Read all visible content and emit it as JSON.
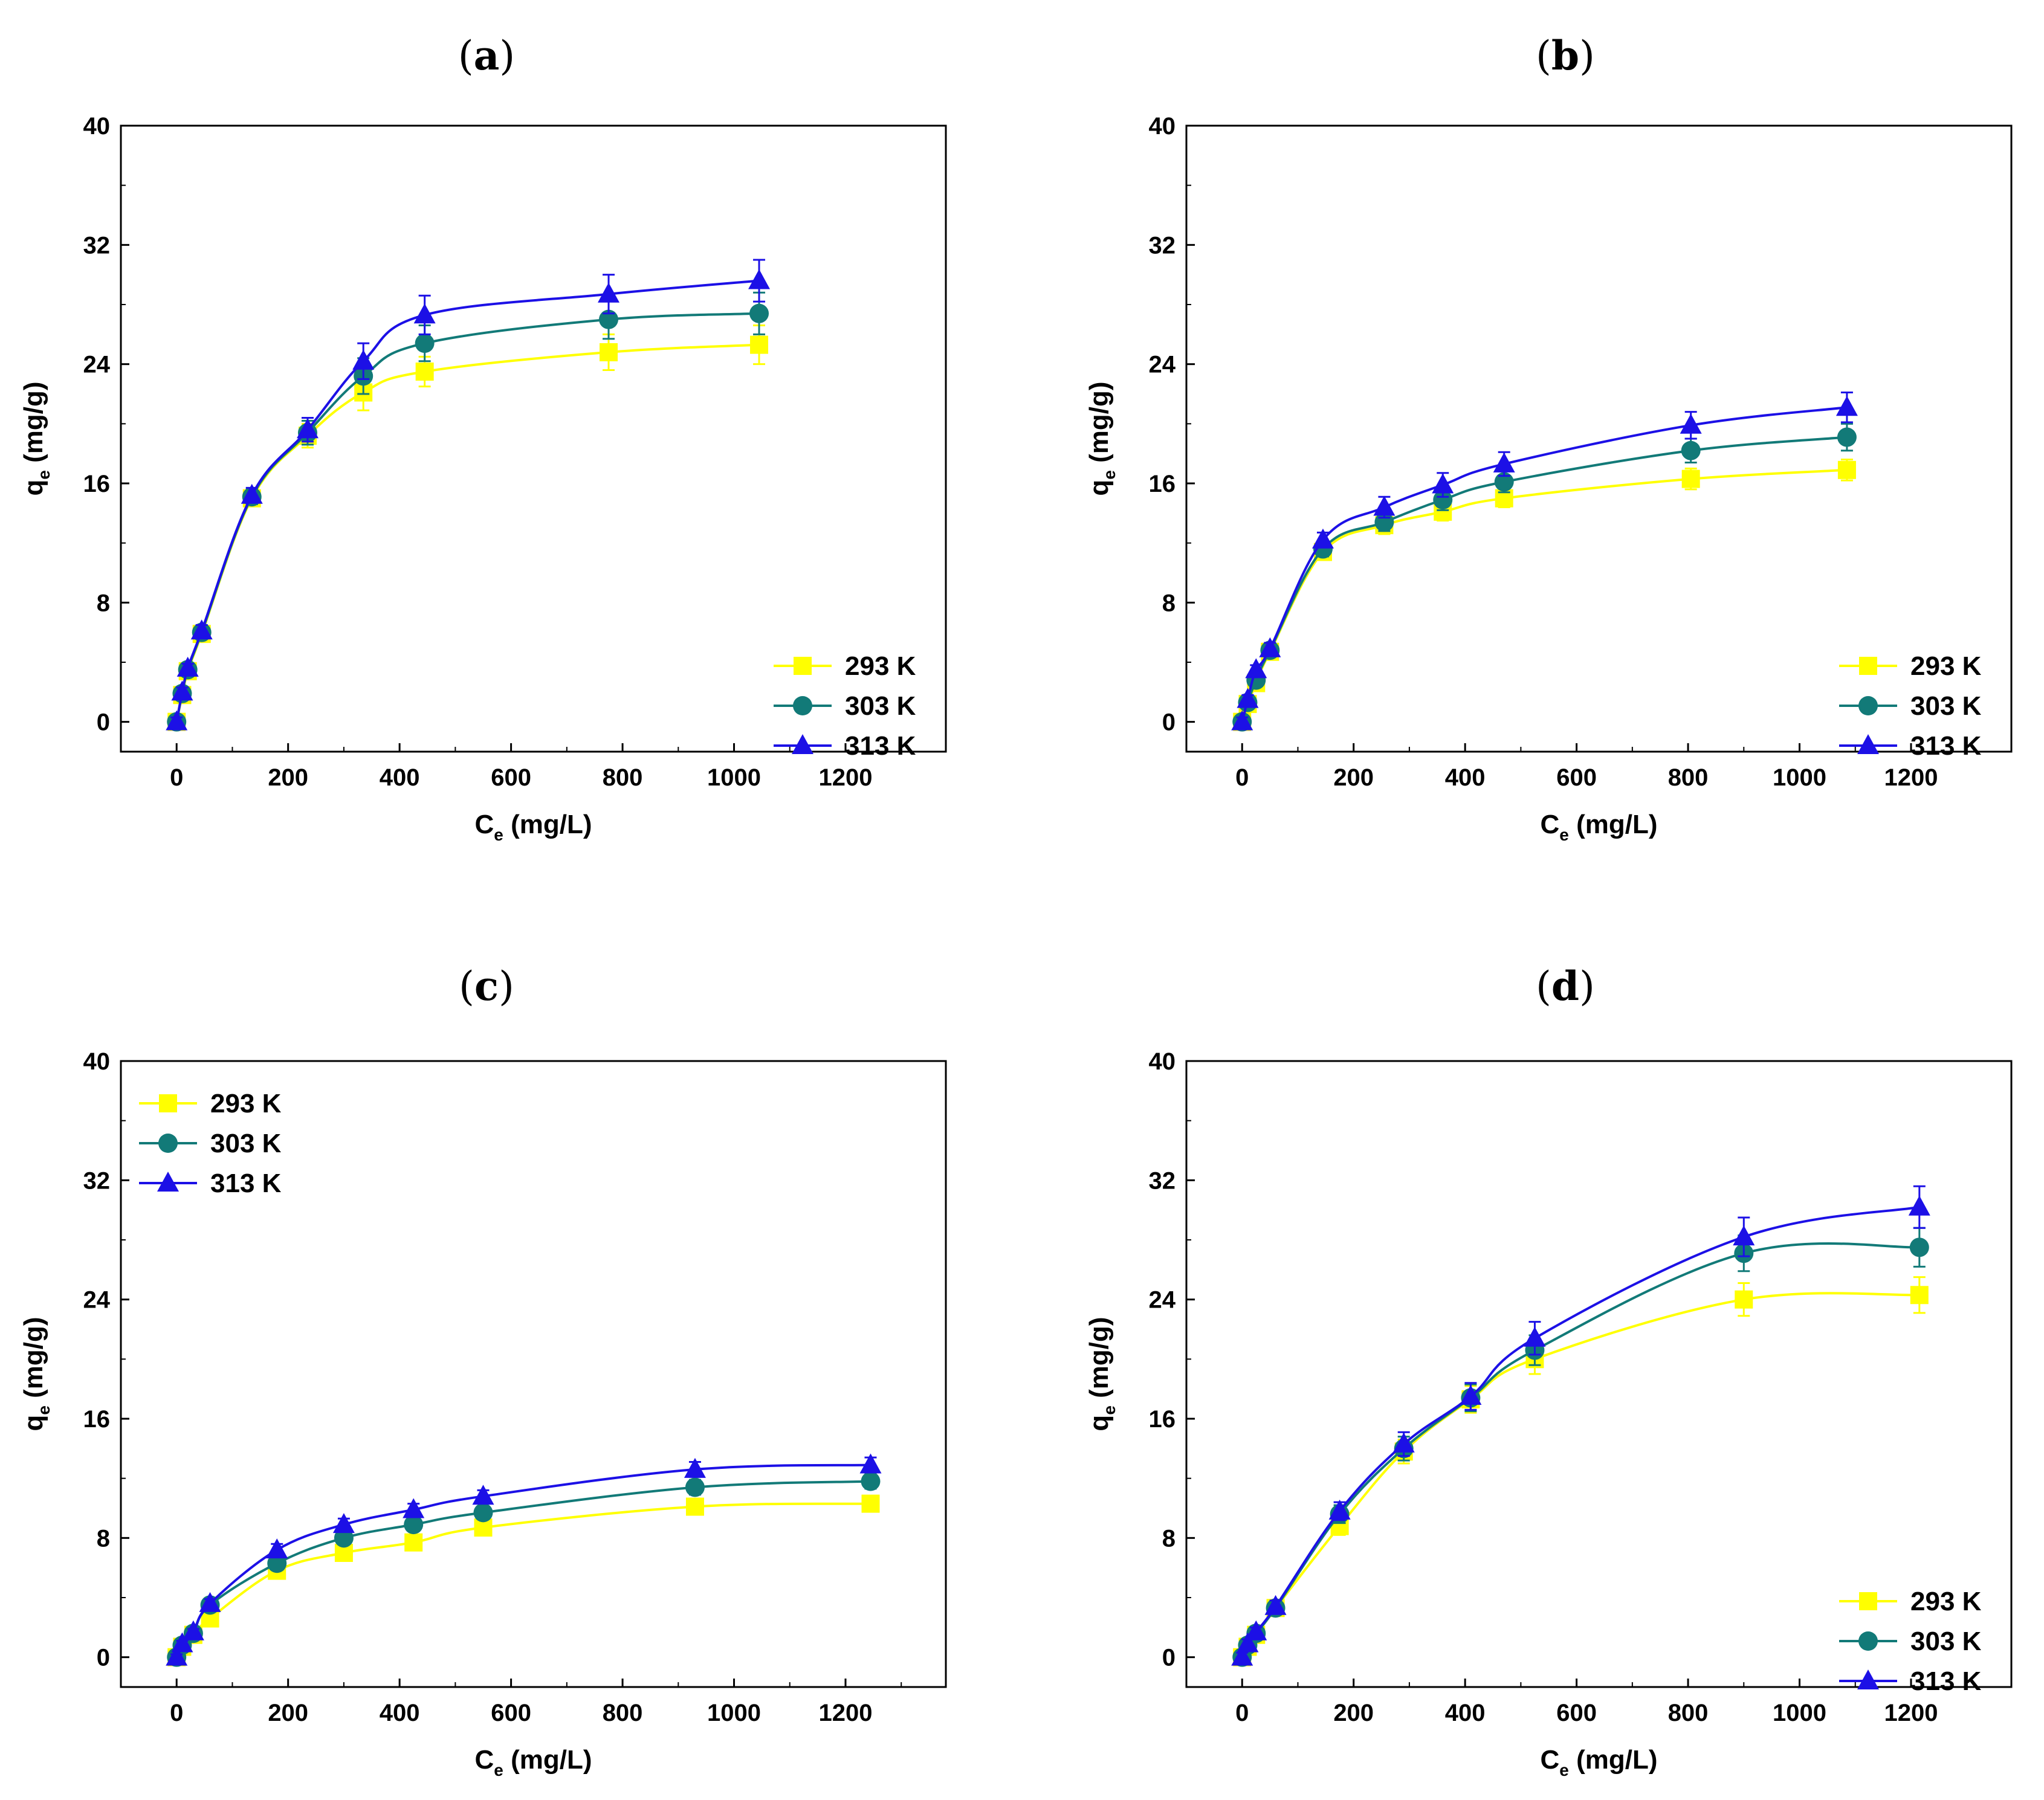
{
  "figure": {
    "series_colors": {
      "293 K": "#ffff00",
      "303 K": "#127a78",
      "313 K": "#1c10e6"
    },
    "marker_names": {
      "293 K": "square",
      "303 K": "circle",
      "313 K": "triangle"
    }
  },
  "chart_data": [
    {
      "id": "a",
      "type": "scatter",
      "panel_label": {
        "open": "(",
        "letter": "a",
        "close": ")"
      },
      "xlabel": {
        "main": "C",
        "sub": "e",
        "unit": " (mg/L)"
      },
      "ylabel": {
        "main": "q",
        "sub": "e",
        "unit": " (mg/g)"
      },
      "xlim": [
        -100,
        1380
      ],
      "ylim": [
        -2,
        40
      ],
      "xticks": [
        0,
        200,
        400,
        600,
        800,
        1000,
        1200
      ],
      "yticks": [
        0,
        8,
        16,
        24,
        32,
        40
      ],
      "legend_position": "bottom-right",
      "series": [
        {
          "name": "293 K",
          "marker": "square",
          "x": [
            0,
            10,
            20,
            45,
            135,
            235,
            335,
            445,
            775,
            1045
          ],
          "y": [
            0,
            1.8,
            3.4,
            5.9,
            15.0,
            19.2,
            22.1,
            23.5,
            24.8,
            25.3
          ],
          "err": [
            0.3,
            0.3,
            0.3,
            0.4,
            0.5,
            0.8,
            1.2,
            1.0,
            1.2,
            1.3
          ]
        },
        {
          "name": "303 K",
          "marker": "circle",
          "x": [
            0,
            10,
            20,
            45,
            135,
            235,
            335,
            445,
            775,
            1045
          ],
          "y": [
            0,
            1.9,
            3.5,
            6.0,
            15.1,
            19.4,
            23.2,
            25.4,
            27.0,
            27.4
          ],
          "err": [
            0.3,
            0.3,
            0.3,
            0.4,
            0.5,
            0.8,
            1.2,
            1.2,
            1.3,
            1.4
          ]
        },
        {
          "name": "313 K",
          "marker": "triangle",
          "x": [
            0,
            10,
            20,
            45,
            135,
            235,
            335,
            445,
            775,
            1045
          ],
          "y": [
            0,
            2.0,
            3.6,
            6.1,
            15.2,
            19.6,
            24.2,
            27.3,
            28.7,
            29.6
          ],
          "err": [
            0.3,
            0.3,
            0.3,
            0.4,
            0.5,
            0.8,
            1.2,
            1.3,
            1.3,
            1.4
          ]
        }
      ]
    },
    {
      "id": "b",
      "type": "scatter",
      "panel_label": {
        "open": "(",
        "letter": "b",
        "close": ")"
      },
      "xlabel": {
        "main": "C",
        "sub": "e",
        "unit": " (mg/L)"
      },
      "ylabel": {
        "main": "q",
        "sub": "e",
        "unit": " (mg/g)"
      },
      "xlim": [
        -100,
        1380
      ],
      "ylim": [
        -2,
        40
      ],
      "xticks": [
        0,
        200,
        400,
        600,
        800,
        1000,
        1200
      ],
      "yticks": [
        0,
        8,
        16,
        24,
        32,
        40
      ],
      "legend_position": "bottom-right",
      "series": [
        {
          "name": "293 K",
          "marker": "square",
          "x": [
            0,
            10,
            25,
            50,
            145,
            255,
            360,
            470,
            805,
            1085
          ],
          "y": [
            0,
            1.2,
            2.6,
            4.7,
            11.4,
            13.2,
            14.1,
            15.0,
            16.3,
            16.9
          ],
          "err": [
            0.3,
            0.3,
            0.3,
            0.4,
            0.5,
            0.6,
            0.6,
            0.6,
            0.7,
            0.7
          ]
        },
        {
          "name": "303 K",
          "marker": "circle",
          "x": [
            0,
            10,
            25,
            50,
            145,
            255,
            360,
            470,
            805,
            1085
          ],
          "y": [
            0,
            1.3,
            2.8,
            4.8,
            11.6,
            13.4,
            14.9,
            16.1,
            18.2,
            19.1
          ],
          "err": [
            0.3,
            0.3,
            0.3,
            0.4,
            0.5,
            0.6,
            0.7,
            0.7,
            0.8,
            0.9
          ]
        },
        {
          "name": "313 K",
          "marker": "triangle",
          "x": [
            0,
            10,
            25,
            50,
            145,
            255,
            360,
            470,
            805,
            1085
          ],
          "y": [
            0,
            1.5,
            3.5,
            4.9,
            12.2,
            14.4,
            15.9,
            17.3,
            19.9,
            21.1
          ],
          "err": [
            0.3,
            0.3,
            0.3,
            0.4,
            0.5,
            0.7,
            0.8,
            0.8,
            0.9,
            1.0
          ]
        }
      ]
    },
    {
      "id": "c",
      "type": "scatter",
      "panel_label": {
        "open": "(",
        "letter": "c",
        "close": ")"
      },
      "xlabel": {
        "main": "C",
        "sub": "e",
        "unit": " (mg/L)"
      },
      "ylabel": {
        "main": "q",
        "sub": "e",
        "unit": " (mg/g)"
      },
      "xlim": [
        -100,
        1380
      ],
      "ylim": [
        -2,
        40
      ],
      "xticks": [
        0,
        200,
        400,
        600,
        800,
        1000,
        1200
      ],
      "yticks": [
        0,
        8,
        16,
        24,
        32,
        40
      ],
      "legend_position": "top-left",
      "series": [
        {
          "name": "293 K",
          "marker": "square",
          "x": [
            0,
            10,
            30,
            60,
            180,
            300,
            425,
            550,
            930,
            1245
          ],
          "y": [
            0,
            0.7,
            1.5,
            2.6,
            5.8,
            7.0,
            7.7,
            8.7,
            10.1,
            10.3
          ],
          "err": [
            0.2,
            0.2,
            0.2,
            0.3,
            0.4,
            0.4,
            0.4,
            0.4,
            0.5,
            0.5
          ]
        },
        {
          "name": "303 K",
          "marker": "circle",
          "x": [
            0,
            10,
            30,
            60,
            180,
            300,
            425,
            550,
            930,
            1245
          ],
          "y": [
            0,
            0.8,
            1.6,
            3.5,
            6.3,
            8.0,
            8.9,
            9.7,
            11.4,
            11.8
          ],
          "err": [
            0.2,
            0.2,
            0.2,
            0.3,
            0.4,
            0.4,
            0.4,
            0.4,
            0.5,
            0.5
          ]
        },
        {
          "name": "313 K",
          "marker": "triangle",
          "x": [
            0,
            10,
            30,
            60,
            180,
            300,
            425,
            550,
            930,
            1245
          ],
          "y": [
            0,
            0.9,
            1.7,
            3.6,
            7.2,
            8.9,
            9.9,
            10.8,
            12.6,
            12.9
          ],
          "err": [
            0.2,
            0.2,
            0.2,
            0.3,
            0.4,
            0.4,
            0.4,
            0.4,
            0.5,
            0.5
          ]
        }
      ]
    },
    {
      "id": "d",
      "type": "scatter",
      "panel_label": {
        "open": "(",
        "letter": "d",
        "close": ")"
      },
      "xlabel": {
        "main": "C",
        "sub": "e",
        "unit": " (mg/L)"
      },
      "ylabel": {
        "main": "q",
        "sub": "e",
        "unit": " (mg/g)"
      },
      "xlim": [
        -100,
        1380
      ],
      "ylim": [
        -2,
        40
      ],
      "xticks": [
        0,
        200,
        400,
        600,
        800,
        1000,
        1200
      ],
      "yticks": [
        0,
        8,
        16,
        24,
        32,
        40
      ],
      "legend_position": "bottom-right",
      "series": [
        {
          "name": "293 K",
          "marker": "square",
          "x": [
            0,
            10,
            25,
            60,
            175,
            290,
            410,
            525,
            900,
            1215
          ],
          "y": [
            0,
            0.7,
            1.5,
            3.3,
            8.8,
            13.8,
            17.3,
            20.0,
            24.0,
            24.3
          ],
          "err": [
            0.3,
            0.3,
            0.3,
            0.4,
            0.6,
            0.8,
            0.9,
            1.0,
            1.1,
            1.2
          ]
        },
        {
          "name": "303 K",
          "marker": "circle",
          "x": [
            0,
            10,
            25,
            60,
            175,
            290,
            410,
            525,
            900,
            1215
          ],
          "y": [
            0,
            0.8,
            1.6,
            3.3,
            9.6,
            14.0,
            17.4,
            20.6,
            27.1,
            27.5
          ],
          "err": [
            0.3,
            0.3,
            0.3,
            0.4,
            0.6,
            0.8,
            0.9,
            1.0,
            1.2,
            1.3
          ]
        },
        {
          "name": "313 K",
          "marker": "triangle",
          "x": [
            0,
            10,
            25,
            60,
            175,
            290,
            410,
            525,
            900,
            1215
          ],
          "y": [
            0,
            0.9,
            1.7,
            3.4,
            9.8,
            14.3,
            17.5,
            21.4,
            28.2,
            30.2
          ],
          "err": [
            0.3,
            0.3,
            0.3,
            0.4,
            0.6,
            0.8,
            0.9,
            1.1,
            1.3,
            1.4
          ]
        }
      ]
    }
  ]
}
